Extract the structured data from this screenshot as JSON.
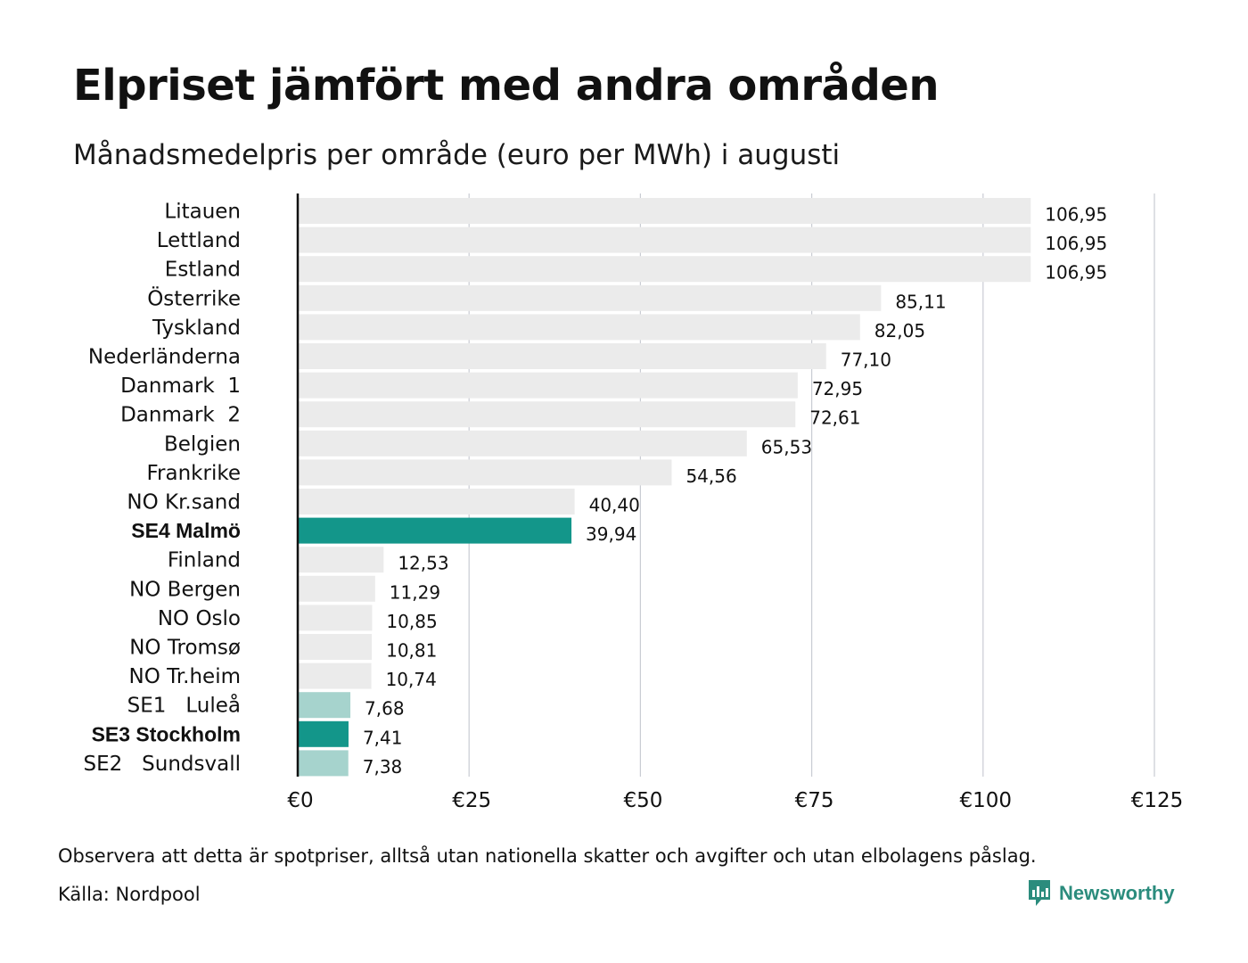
{
  "header": {
    "title": "Elpriset jämfört med andra områden",
    "subtitle": "Månadsmedelpris per område (euro per MWh) i augusti"
  },
  "footer": {
    "note": "Observera att detta är spotpriser, alltså utan nationella skatter och avgifter och utan elbolagens påslag.",
    "source": "Källa: Nordpool",
    "brand": "Newsworthy",
    "brand_icon": "newsworthy-logo-icon",
    "brand_color": "#2b8c7d"
  },
  "colors": {
    "default_bar": "#ebebeb",
    "highlight_bar": "#13968a",
    "light_highlight_bar": "#a6d3cd",
    "grid": "#c9ccd3",
    "axis": "#111111"
  },
  "chart_data": {
    "type": "bar",
    "orientation": "horizontal",
    "title": "Elpriset jämfört med andra områden",
    "subtitle": "Månadsmedelpris per område (euro per MWh) i augusti",
    "xlim": [
      0,
      125
    ],
    "x_ticks": [
      "€0",
      "€25",
      "€50",
      "€75",
      "€100",
      "€125"
    ],
    "x_tick_values": [
      0,
      25,
      50,
      75,
      100,
      125
    ],
    "grid": true,
    "categories": [
      "Litauen",
      "Lettland",
      "Estland",
      "Österrike",
      "Tyskland",
      "Nederländerna",
      "Danmark  1",
      "Danmark  2",
      "Belgien",
      "Frankrike",
      "NO Kr.sand",
      "SE4 Malmö",
      "Finland",
      "NO Bergen",
      "NO Oslo",
      "NO Tromsø",
      "NO Tr.heim",
      "SE1   Luleå",
      "SE3 Stockholm",
      "SE2   Sundsvall"
    ],
    "values": [
      106.95,
      106.95,
      106.95,
      85.11,
      82.05,
      77.1,
      72.95,
      72.61,
      65.53,
      54.56,
      40.4,
      39.94,
      12.53,
      11.29,
      10.85,
      10.81,
      10.74,
      7.68,
      7.41,
      7.38
    ],
    "value_labels": [
      "106,95",
      "106,95",
      "106,95",
      "85,11",
      "82,05",
      "77,10",
      "72,95",
      "72,61",
      "65,53",
      "54,56",
      "40,40",
      "39,94",
      "12,53",
      "11,29",
      "10,85",
      "10,81",
      "10,74",
      "7,68",
      "7,41",
      "7,38"
    ],
    "highlight": [
      "none",
      "none",
      "none",
      "none",
      "none",
      "none",
      "none",
      "none",
      "none",
      "none",
      "none",
      "strong",
      "none",
      "none",
      "none",
      "none",
      "none",
      "light",
      "strong",
      "light"
    ],
    "bold_labels": [
      "SE4 Malmö",
      "SE3 Stockholm"
    ]
  }
}
